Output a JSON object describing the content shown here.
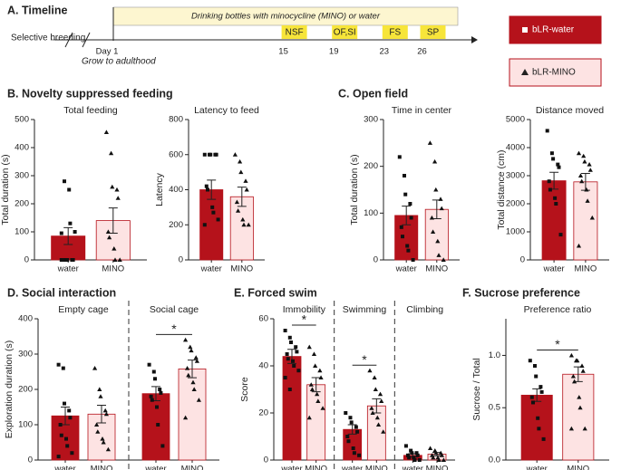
{
  "timeline": {
    "title": "A. Timeline",
    "bar_text": "Drinking bottles with minocycline (MINO) or water",
    "start": "Selective breeding",
    "grow": "Grow to adulthood",
    "day1": "Day 1",
    "tests": [
      {
        "label": "NSF",
        "day": 15
      },
      {
        "label": "OF,SI",
        "day": 19
      },
      {
        "label": "FS",
        "day": 23
      },
      {
        "label": "SP",
        "day": 26
      }
    ]
  },
  "legend": [
    {
      "name": "bLR-water",
      "color": "#b5121b",
      "marker": "square"
    },
    {
      "name": "bLR-MINO",
      "color": "#fde3e3",
      "marker": "triangle"
    }
  ],
  "panel_titles": [
    "B. Novelty suppressed feeding",
    "C. Open field",
    "D. Social interaction",
    "E. Forced swim",
    "F. Sucrose preference"
  ],
  "chart_data": [
    {
      "type": "bar",
      "ylabel": "Total duration (s)",
      "ylim": [
        0,
        500
      ],
      "yticks": [
        0,
        100,
        200,
        300,
        400,
        500
      ],
      "categories": [
        "water",
        "MINO"
      ],
      "groups": [
        {
          "title": "Total feeding",
          "values": [
            85,
            140
          ],
          "errors": [
            30,
            45
          ],
          "points": [
            [
              0,
              0,
              0,
              0,
              0,
              0,
              280,
              250,
              130,
              100,
              95
            ],
            [
              455,
              380,
              260,
              250,
              220,
              100,
              80,
              40,
              0,
              0
            ]
          ]
        }
      ]
    },
    {
      "type": "bar",
      "ylabel": "Latency",
      "ylim": [
        0,
        800
      ],
      "yticks": [
        0,
        200,
        400,
        600,
        800
      ],
      "categories": [
        "water",
        "MINO"
      ],
      "groups": [
        {
          "title": "Latency to feed",
          "values": [
            400,
            360
          ],
          "errors": [
            55,
            55
          ],
          "points": [
            [
              600,
              600,
              600,
              600,
              600,
              420,
              400,
              300,
              270,
              230,
              200
            ],
            [
              600,
              560,
              500,
              450,
              400,
              330,
              280,
              230,
              200,
              200
            ]
          ]
        }
      ]
    },
    {
      "type": "bar",
      "ylabel": "Total duration (s)",
      "ylim": [
        0,
        300
      ],
      "yticks": [
        0,
        100,
        200,
        300
      ],
      "categories": [
        "water",
        "MINO"
      ],
      "groups": [
        {
          "title": "Time in center",
          "values": [
            95,
            108
          ],
          "errors": [
            20,
            20
          ],
          "points": [
            [
              220,
              180,
              140,
              120,
              90,
              70,
              50,
              30,
              20,
              0
            ],
            [
              250,
              210,
              150,
              130,
              110,
              90,
              60,
              40,
              10,
              0
            ]
          ]
        }
      ]
    },
    {
      "type": "bar",
      "ylabel": "Total distance (cm)",
      "ylim": [
        0,
        5000
      ],
      "yticks": [
        0,
        1000,
        2000,
        3000,
        4000,
        5000
      ],
      "categories": [
        "water",
        "MINO"
      ],
      "groups": [
        {
          "title": "Distance moved",
          "values": [
            2820,
            2780
          ],
          "errors": [
            300,
            300
          ],
          "points": [
            [
              4600,
              3800,
              3600,
              3400,
              3300,
              2800,
              2500,
              2200,
              2000,
              900
            ],
            [
              3800,
              3700,
              3500,
              3400,
              3200,
              3000,
              2800,
              2500,
              2100,
              1500,
              500
            ]
          ]
        }
      ]
    },
    {
      "type": "bar",
      "ylabel": "Exploration duration (s)",
      "ylim": [
        0,
        400
      ],
      "yticks": [
        0,
        100,
        200,
        300,
        400
      ],
      "categories": [
        "water",
        "MINO"
      ],
      "groups": [
        {
          "title": "Empty cage",
          "values": [
            125,
            130
          ],
          "errors": [
            25,
            25
          ],
          "points": [
            [
              270,
              260,
              160,
              140,
              120,
              100,
              70,
              60,
              40,
              20,
              10
            ],
            [
              260,
              200,
              180,
              140,
              130,
              100,
              80,
              60,
              50,
              30
            ]
          ]
        },
        {
          "title": "Social cage",
          "values": [
            188,
            258
          ],
          "errors": [
            20,
            25
          ],
          "annotation": "*",
          "points": [
            [
              270,
              250,
              230,
              200,
              190,
              180,
              170,
              150,
              100,
              40
            ],
            [
              340,
              320,
              310,
              290,
              280,
              260,
              240,
              220,
              200,
              170,
              120
            ]
          ]
        }
      ]
    },
    {
      "type": "bar",
      "ylabel": "Score",
      "ylim": [
        0,
        60
      ],
      "yticks": [
        0,
        20,
        40,
        60
      ],
      "categories": [
        "water",
        "MINO"
      ],
      "groups": [
        {
          "title": "Immobility",
          "values": [
            44,
            32
          ],
          "errors": [
            3,
            3
          ],
          "annotation": "*",
          "points": [
            [
              55,
              52,
              50,
              48,
              46,
              45,
              43,
              42,
              40,
              38,
              35,
              30
            ],
            [
              48,
              45,
              40,
              38,
              35,
              32,
              30,
              28,
              25,
              22,
              18
            ]
          ]
        },
        {
          "title": "Swimming",
          "values": [
            13,
            23
          ],
          "errors": [
            2,
            3
          ],
          "annotation": "*",
          "points": [
            [
              20,
              18,
              16,
              14,
              12,
              10,
              8,
              5,
              3,
              2
            ],
            [
              38,
              35,
              30,
              28,
              25,
              22,
              20,
              18,
              15,
              12
            ]
          ]
        },
        {
          "title": "Climbing",
          "values": [
            2,
            2.5
          ],
          "errors": [
            0.7,
            0.7
          ],
          "points": [
            [
              6,
              4,
              3,
              3,
              2,
              2,
              1,
              1,
              0,
              0
            ],
            [
              5,
              4,
              3,
              3,
              2,
              2,
              1,
              1,
              0,
              0
            ]
          ]
        }
      ]
    },
    {
      "type": "bar",
      "ylabel": "Sucrose / Total",
      "ylim": [
        0,
        1.35
      ],
      "yticks": [
        {
          "value": 0,
          "label": "0.0"
        },
        {
          "value": 0.5,
          "label": "0.5"
        },
        {
          "value": 1,
          "label": "1.0"
        }
      ],
      "categories": [
        "water",
        "MINO"
      ],
      "groups": [
        {
          "title": "Preference ratio",
          "values": [
            0.62,
            0.82
          ],
          "errors": [
            0.06,
            0.07
          ],
          "annotation": "*",
          "points": [
            [
              0.95,
              0.9,
              0.8,
              0.7,
              0.65,
              0.6,
              0.55,
              0.4,
              0.3,
              0.2
            ],
            [
              1.0,
              0.95,
              0.95,
              0.9,
              0.85,
              0.8,
              0.75,
              0.6,
              0.5,
              0.3,
              0.3
            ]
          ]
        }
      ]
    }
  ]
}
